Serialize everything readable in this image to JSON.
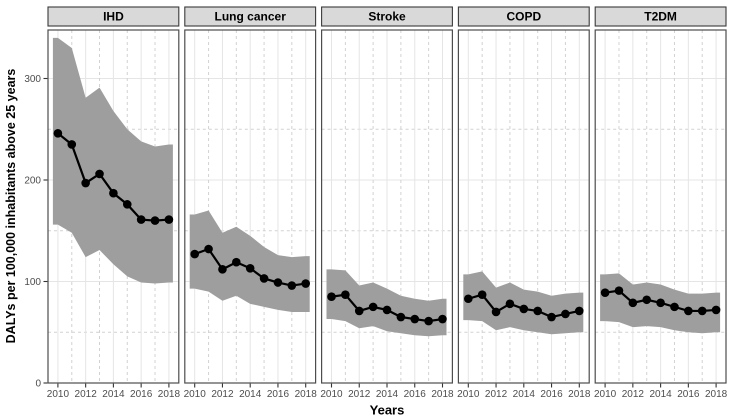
{
  "chart_data": {
    "type": "line",
    "title": "",
    "xlabel": "Years",
    "ylabel": "DALYs per 100,000 inhabitants above 25 years",
    "years": [
      2010,
      2011,
      2012,
      2013,
      2014,
      2015,
      2016,
      2017,
      2018
    ],
    "x_tick_years": [
      2010,
      2012,
      2014,
      2016,
      2018
    ],
    "y_ticks": [
      0,
      100,
      200,
      300
    ],
    "y_minor_ticks": [
      50,
      150,
      250
    ],
    "ylim": [
      0,
      348
    ],
    "legend": "none",
    "grid": "major solid, minor dashed",
    "facets": [
      {
        "label": "IHD",
        "values": [
          246,
          235,
          197,
          206,
          187,
          176,
          161,
          160,
          161
        ],
        "upper": [
          340,
          330,
          281,
          291,
          268,
          250,
          238,
          233,
          235
        ],
        "lower": [
          156,
          148,
          124,
          131,
          117,
          105,
          99,
          98,
          99
        ]
      },
      {
        "label": "Lung cancer",
        "values": [
          127,
          132,
          112,
          119,
          113,
          103,
          99,
          96,
          98
        ],
        "upper": [
          166,
          170,
          148,
          154,
          145,
          134,
          126,
          124,
          125
        ],
        "lower": [
          93,
          90,
          81,
          86,
          78,
          75,
          72,
          70,
          70
        ]
      },
      {
        "label": "Stroke",
        "values": [
          85,
          87,
          71,
          75,
          72,
          65,
          63,
          61,
          63
        ],
        "upper": [
          112,
          111,
          96,
          99,
          93,
          86,
          83,
          81,
          83
        ],
        "lower": [
          63,
          61,
          54,
          56,
          51,
          49,
          47,
          46,
          47
        ]
      },
      {
        "label": "COPD",
        "values": [
          83,
          87,
          70,
          78,
          73,
          71,
          65,
          68,
          71
        ],
        "upper": [
          107,
          110,
          94,
          99,
          92,
          90,
          86,
          88,
          89
        ],
        "lower": [
          62,
          61,
          52,
          55,
          52,
          50,
          48,
          49,
          50
        ]
      },
      {
        "label": "T2DM",
        "values": [
          89,
          91,
          79,
          82,
          79,
          75,
          71,
          71,
          72
        ],
        "upper": [
          107,
          108,
          97,
          99,
          97,
          92,
          88,
          88,
          89
        ],
        "lower": [
          61,
          60,
          55,
          56,
          55,
          52,
          50,
          49,
          50
        ]
      }
    ],
    "colors": {
      "ribbon": "#9e9e9e",
      "line": "#000000",
      "point": "#000000",
      "strip_bg": "#d9d9d9",
      "strip_border": "#3a3a3a",
      "strip_text": "#000000",
      "panel_bg": "#ffffff",
      "panel_border": "#4d4d4d",
      "grid_major": "#e5e5e5",
      "grid_minor": "#d2d2d2",
      "tick_text": "#4d4d4d",
      "tick_mark": "#333333"
    }
  }
}
